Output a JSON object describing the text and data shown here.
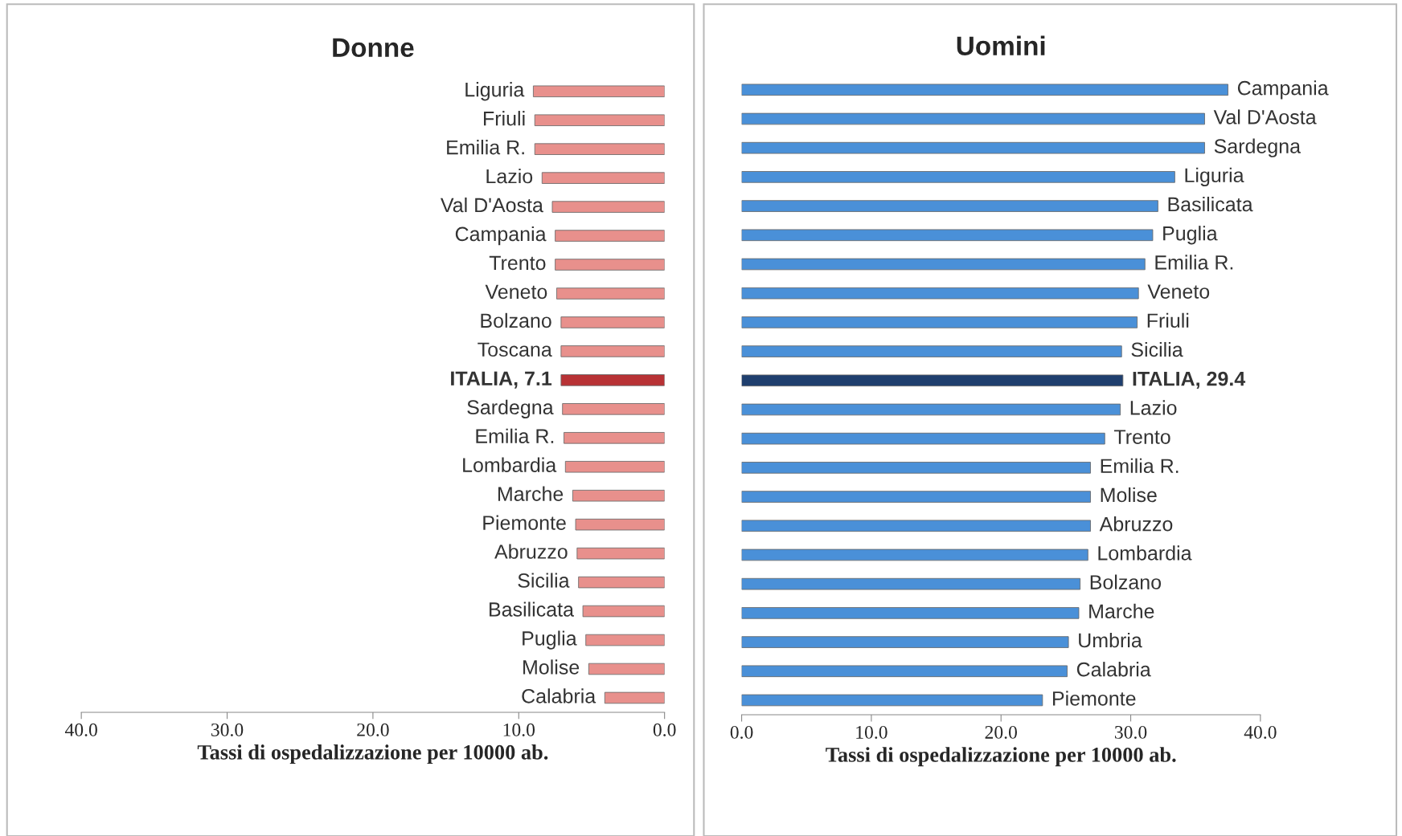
{
  "chart_data": [
    {
      "type": "bar",
      "orientation": "horizontal",
      "title": "Donne",
      "xlabel": "Tassi di ospedalizzazione per 10000 ab.",
      "categories": [
        "Liguria",
        "Friuli",
        "Emilia R.",
        "Lazio",
        "Val D'Aosta",
        "Campania",
        "Trento",
        "Veneto",
        "Bolzano",
        "Toscana",
        "ITALIA, 7.1",
        "Sardegna",
        "Emilia R.",
        "Lombardia",
        "Marche",
        "Piemonte",
        "Abruzzo",
        "Sicilia",
        "Basilicata",
        "Puglia",
        "Molise",
        "Calabria"
      ],
      "values": [
        9.0,
        8.9,
        8.9,
        8.4,
        7.7,
        7.5,
        7.5,
        7.4,
        7.1,
        7.1,
        7.1,
        7.0,
        6.9,
        6.8,
        6.3,
        6.1,
        6.0,
        5.9,
        5.6,
        5.4,
        5.2,
        4.1
      ],
      "colors": [
        "#e8908c",
        "#e8908c",
        "#e8908c",
        "#e8908c",
        "#e8908c",
        "#e8908c",
        "#e8908c",
        "#e8908c",
        "#e8908c",
        "#e8908c",
        "#b83235",
        "#e8908c",
        "#e8908c",
        "#e8908c",
        "#e8908c",
        "#e8908c",
        "#e8908c",
        "#e8908c",
        "#e8908c",
        "#e8908c",
        "#e8908c",
        "#e8908c"
      ],
      "xlim": [
        40,
        0
      ],
      "xticks": [
        {
          "value": 40,
          "label": "40.0"
        },
        {
          "value": 30,
          "label": "30.0"
        },
        {
          "value": 20,
          "label": "20.0"
        },
        {
          "value": 10,
          "label": "10.0"
        },
        {
          "value": 0,
          "label": "0.0"
        }
      ],
      "grid": false
    },
    {
      "type": "bar",
      "orientation": "horizontal",
      "title": "Uomini",
      "xlabel": "Tassi di ospedalizzazione per 10000 ab.",
      "categories": [
        "Campania",
        "Val D'Aosta",
        "Sardegna",
        "Liguria",
        "Basilicata",
        "Puglia",
        "Emilia R.",
        "Veneto",
        "Friuli",
        "Sicilia",
        "ITALIA, 29.4",
        "Lazio",
        "Trento",
        "Emilia R.",
        "Molise",
        "Abruzzo",
        "Lombardia",
        "Bolzano",
        "Marche",
        "Umbria",
        "Calabria",
        "Piemonte"
      ],
      "values": [
        37.5,
        35.7,
        35.7,
        33.4,
        32.1,
        31.7,
        31.1,
        30.6,
        30.5,
        29.3,
        29.4,
        29.2,
        28.0,
        26.9,
        26.9,
        26.9,
        26.7,
        26.1,
        26.0,
        25.2,
        25.1,
        23.2
      ],
      "colors": [
        "#4a90d8",
        "#4a90d8",
        "#4a90d8",
        "#4a90d8",
        "#4a90d8",
        "#4a90d8",
        "#4a90d8",
        "#4a90d8",
        "#4a90d8",
        "#4a90d8",
        "#1f3f6e",
        "#4a90d8",
        "#4a90d8",
        "#4a90d8",
        "#4a90d8",
        "#4a90d8",
        "#4a90d8",
        "#4a90d8",
        "#4a90d8",
        "#4a90d8",
        "#4a90d8",
        "#4a90d8"
      ],
      "xlim": [
        0,
        40
      ],
      "xticks": [
        {
          "value": 0,
          "label": "0.0"
        },
        {
          "value": 10,
          "label": "10.0"
        },
        {
          "value": 20,
          "label": "20.0"
        },
        {
          "value": 30,
          "label": "30.0"
        },
        {
          "value": 40,
          "label": "40.0"
        }
      ],
      "grid": false
    }
  ]
}
